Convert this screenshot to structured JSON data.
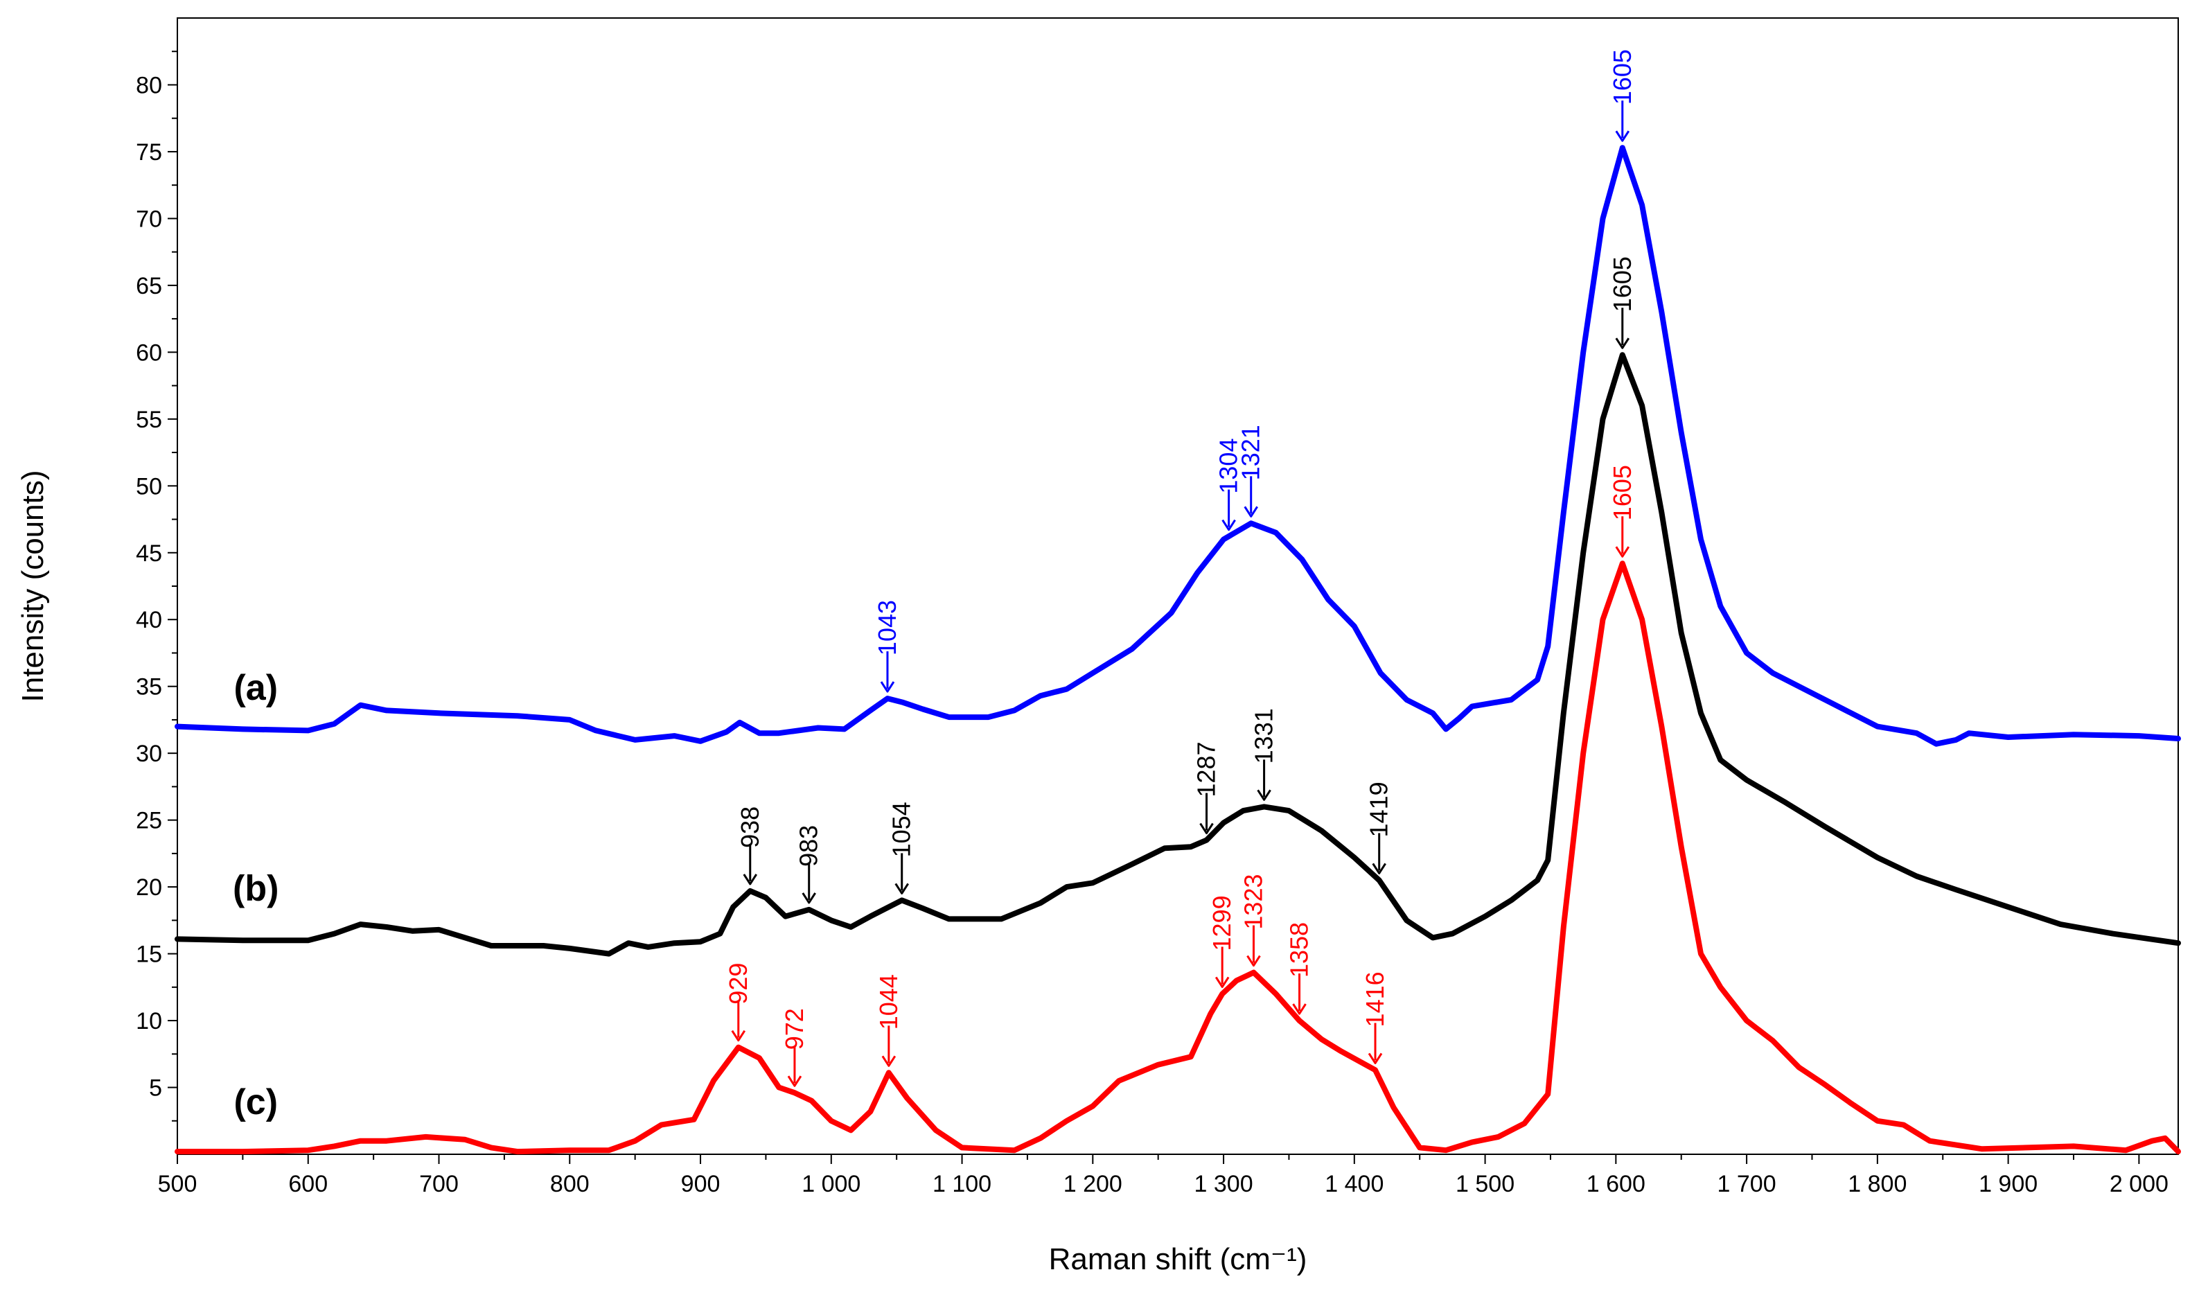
{
  "chart_data": {
    "type": "line",
    "title": "",
    "xlabel": "Raman shift (cm⁻¹)",
    "ylabel": "Intensity (counts)",
    "xlim": [
      500,
      2030
    ],
    "ylim": [
      0,
      85
    ],
    "grid": false,
    "x_ticks": [
      500,
      600,
      700,
      800,
      900,
      1000,
      1100,
      1200,
      1300,
      1400,
      1500,
      1600,
      1700,
      1800,
      1900,
      2000
    ],
    "x_tick_labels": [
      "500",
      "600",
      "700",
      "800",
      "900",
      "1 000",
      "1 100",
      "1 200",
      "1 300",
      "1 400",
      "1 500",
      "1 600",
      "1 700",
      "1 800",
      "1 900",
      "2 000"
    ],
    "y_ticks": [
      5,
      10,
      15,
      20,
      25,
      30,
      35,
      40,
      45,
      50,
      55,
      60,
      65,
      70,
      75,
      80
    ],
    "y_tick_labels": [
      "5",
      "10",
      "15",
      "20",
      "25",
      "30",
      "35",
      "40",
      "45",
      "50",
      "55",
      "60",
      "65",
      "70",
      "75",
      "80"
    ],
    "series": [
      {
        "name": "(a)",
        "color": "#0000ff",
        "points": [
          [
            500,
            32
          ],
          [
            550,
            31.8
          ],
          [
            600,
            31.7
          ],
          [
            620,
            32.2
          ],
          [
            640,
            33.6
          ],
          [
            660,
            33.2
          ],
          [
            700,
            33
          ],
          [
            760,
            32.8
          ],
          [
            800,
            32.5
          ],
          [
            820,
            31.7
          ],
          [
            850,
            31
          ],
          [
            880,
            31.3
          ],
          [
            900,
            30.9
          ],
          [
            920,
            31.6
          ],
          [
            930,
            32.3
          ],
          [
            945,
            31.5
          ],
          [
            960,
            31.5
          ],
          [
            990,
            31.9
          ],
          [
            1010,
            31.8
          ],
          [
            1030,
            33.2
          ],
          [
            1043,
            34.1
          ],
          [
            1055,
            33.8
          ],
          [
            1070,
            33.3
          ],
          [
            1090,
            32.7
          ],
          [
            1120,
            32.7
          ],
          [
            1140,
            33.2
          ],
          [
            1160,
            34.3
          ],
          [
            1180,
            34.8
          ],
          [
            1200,
            36
          ],
          [
            1230,
            37.8
          ],
          [
            1260,
            40.5
          ],
          [
            1280,
            43.5
          ],
          [
            1300,
            46
          ],
          [
            1321,
            47.2
          ],
          [
            1340,
            46.5
          ],
          [
            1360,
            44.5
          ],
          [
            1380,
            41.5
          ],
          [
            1400,
            39.5
          ],
          [
            1420,
            36
          ],
          [
            1440,
            34
          ],
          [
            1460,
            33
          ],
          [
            1470,
            31.8
          ],
          [
            1480,
            32.6
          ],
          [
            1490,
            33.5
          ],
          [
            1520,
            34
          ],
          [
            1540,
            35.5
          ],
          [
            1548,
            38
          ],
          [
            1560,
            48
          ],
          [
            1575,
            60
          ],
          [
            1590,
            70
          ],
          [
            1605,
            75.3
          ],
          [
            1620,
            71
          ],
          [
            1635,
            63
          ],
          [
            1650,
            54
          ],
          [
            1665,
            46
          ],
          [
            1680,
            41
          ],
          [
            1700,
            37.5
          ],
          [
            1720,
            36
          ],
          [
            1750,
            34.5
          ],
          [
            1780,
            33
          ],
          [
            1800,
            32
          ],
          [
            1830,
            31.5
          ],
          [
            1845,
            30.7
          ],
          [
            1860,
            31
          ],
          [
            1870,
            31.5
          ],
          [
            1900,
            31.2
          ],
          [
            1950,
            31.4
          ],
          [
            2000,
            31.3
          ],
          [
            2030,
            31.1
          ]
        ]
      },
      {
        "name": "(b)",
        "color": "#000000",
        "points": [
          [
            500,
            16.1
          ],
          [
            550,
            16
          ],
          [
            600,
            16
          ],
          [
            620,
            16.5
          ],
          [
            640,
            17.2
          ],
          [
            660,
            17
          ],
          [
            680,
            16.7
          ],
          [
            700,
            16.8
          ],
          [
            720,
            16.2
          ],
          [
            740,
            15.6
          ],
          [
            780,
            15.6
          ],
          [
            800,
            15.4
          ],
          [
            830,
            15
          ],
          [
            845,
            15.8
          ],
          [
            860,
            15.5
          ],
          [
            880,
            15.8
          ],
          [
            900,
            15.9
          ],
          [
            915,
            16.5
          ],
          [
            925,
            18.5
          ],
          [
            938,
            19.7
          ],
          [
            950,
            19.2
          ],
          [
            965,
            17.8
          ],
          [
            983,
            18.3
          ],
          [
            1000,
            17.5
          ],
          [
            1015,
            17
          ],
          [
            1030,
            17.8
          ],
          [
            1054,
            19
          ],
          [
            1070,
            18.4
          ],
          [
            1090,
            17.6
          ],
          [
            1130,
            17.6
          ],
          [
            1160,
            18.8
          ],
          [
            1180,
            20
          ],
          [
            1200,
            20.3
          ],
          [
            1230,
            21.7
          ],
          [
            1255,
            22.9
          ],
          [
            1275,
            23
          ],
          [
            1287,
            23.5
          ],
          [
            1300,
            24.8
          ],
          [
            1315,
            25.7
          ],
          [
            1331,
            26
          ],
          [
            1350,
            25.7
          ],
          [
            1375,
            24.2
          ],
          [
            1400,
            22.2
          ],
          [
            1419,
            20.5
          ],
          [
            1440,
            17.5
          ],
          [
            1460,
            16.2
          ],
          [
            1475,
            16.5
          ],
          [
            1500,
            17.8
          ],
          [
            1520,
            19
          ],
          [
            1540,
            20.5
          ],
          [
            1548,
            22
          ],
          [
            1560,
            33
          ],
          [
            1575,
            45
          ],
          [
            1590,
            55
          ],
          [
            1605,
            59.8
          ],
          [
            1620,
            56
          ],
          [
            1635,
            48
          ],
          [
            1650,
            39
          ],
          [
            1665,
            33
          ],
          [
            1680,
            29.5
          ],
          [
            1700,
            28
          ],
          [
            1730,
            26.3
          ],
          [
            1760,
            24.5
          ],
          [
            1800,
            22.2
          ],
          [
            1830,
            20.8
          ],
          [
            1860,
            19.8
          ],
          [
            1900,
            18.5
          ],
          [
            1940,
            17.2
          ],
          [
            1980,
            16.5
          ],
          [
            2030,
            15.8
          ]
        ]
      },
      {
        "name": "(c)",
        "color": "#ff0000",
        "points": [
          [
            500,
            0.2
          ],
          [
            550,
            0.2
          ],
          [
            600,
            0.3
          ],
          [
            620,
            0.6
          ],
          [
            640,
            1
          ],
          [
            660,
            1
          ],
          [
            690,
            1.3
          ],
          [
            720,
            1.1
          ],
          [
            740,
            0.5
          ],
          [
            760,
            0.2
          ],
          [
            800,
            0.3
          ],
          [
            830,
            0.3
          ],
          [
            850,
            1
          ],
          [
            870,
            2.2
          ],
          [
            895,
            2.6
          ],
          [
            910,
            5.5
          ],
          [
            929,
            8
          ],
          [
            945,
            7.2
          ],
          [
            960,
            5
          ],
          [
            972,
            4.6
          ],
          [
            985,
            4
          ],
          [
            1000,
            2.5
          ],
          [
            1015,
            1.8
          ],
          [
            1030,
            3.2
          ],
          [
            1044,
            6.1
          ],
          [
            1058,
            4.2
          ],
          [
            1080,
            1.8
          ],
          [
            1100,
            0.5
          ],
          [
            1140,
            0.3
          ],
          [
            1160,
            1.2
          ],
          [
            1180,
            2.5
          ],
          [
            1200,
            3.6
          ],
          [
            1220,
            5.5
          ],
          [
            1250,
            6.7
          ],
          [
            1275,
            7.3
          ],
          [
            1290,
            10.5
          ],
          [
            1299,
            12
          ],
          [
            1310,
            13
          ],
          [
            1323,
            13.6
          ],
          [
            1340,
            12
          ],
          [
            1358,
            10
          ],
          [
            1375,
            8.6
          ],
          [
            1390,
            7.7
          ],
          [
            1416,
            6.3
          ],
          [
            1430,
            3.5
          ],
          [
            1450,
            0.5
          ],
          [
            1470,
            0.3
          ],
          [
            1490,
            0.9
          ],
          [
            1510,
            1.3
          ],
          [
            1530,
            2.3
          ],
          [
            1548,
            4.5
          ],
          [
            1560,
            17
          ],
          [
            1575,
            30
          ],
          [
            1590,
            40
          ],
          [
            1605,
            44.2
          ],
          [
            1620,
            40
          ],
          [
            1635,
            32
          ],
          [
            1650,
            23
          ],
          [
            1665,
            15
          ],
          [
            1680,
            12.5
          ],
          [
            1700,
            10
          ],
          [
            1720,
            8.5
          ],
          [
            1740,
            6.5
          ],
          [
            1760,
            5.2
          ],
          [
            1780,
            3.8
          ],
          [
            1800,
            2.5
          ],
          [
            1820,
            2.2
          ],
          [
            1840,
            1
          ],
          [
            1880,
            0.4
          ],
          [
            1950,
            0.6
          ],
          [
            1990,
            0.3
          ],
          [
            2010,
            1
          ],
          [
            2020,
            1.2
          ],
          [
            2030,
            0.2
          ]
        ]
      }
    ],
    "series_labels": [
      {
        "text": "(a)",
        "x": 560,
        "y": 34
      },
      {
        "text": "(b)",
        "x": 560,
        "y": 19
      },
      {
        "text": "(c)",
        "x": 560,
        "y": 3
      }
    ],
    "annotations": [
      {
        "series": "(a)",
        "label": "1043",
        "x": 1043,
        "y": 34.1,
        "color": "#0000ff"
      },
      {
        "series": "(a)",
        "label": "1304",
        "x": 1304,
        "y": 46.2,
        "color": "#0000ff"
      },
      {
        "series": "(a)",
        "label": "1321",
        "x": 1321,
        "y": 47.2,
        "color": "#0000ff"
      },
      {
        "series": "(a)",
        "label": "1605",
        "x": 1605,
        "y": 75.3,
        "color": "#0000ff"
      },
      {
        "series": "(b)",
        "label": "938",
        "x": 938,
        "y": 19.7,
        "color": "#000000"
      },
      {
        "series": "(b)",
        "label": "983",
        "x": 983,
        "y": 18.3,
        "color": "#000000"
      },
      {
        "series": "(b)",
        "label": "1054",
        "x": 1054,
        "y": 19,
        "color": "#000000"
      },
      {
        "series": "(b)",
        "label": "1287",
        "x": 1287,
        "y": 23.5,
        "color": "#000000"
      },
      {
        "series": "(b)",
        "label": "1331",
        "x": 1331,
        "y": 26,
        "color": "#000000"
      },
      {
        "series": "(b)",
        "label": "1419",
        "x": 1419,
        "y": 20.5,
        "color": "#000000"
      },
      {
        "series": "(b)",
        "label": "1605",
        "x": 1605,
        "y": 59.8,
        "color": "#000000"
      },
      {
        "series": "(c)",
        "label": "929",
        "x": 929,
        "y": 8,
        "color": "#ff0000"
      },
      {
        "series": "(c)",
        "label": "972",
        "x": 972,
        "y": 4.6,
        "color": "#ff0000"
      },
      {
        "series": "(c)",
        "label": "1044",
        "x": 1044,
        "y": 6.1,
        "color": "#ff0000"
      },
      {
        "series": "(c)",
        "label": "1299",
        "x": 1299,
        "y": 12,
        "color": "#ff0000"
      },
      {
        "series": "(c)",
        "label": "1323",
        "x": 1323,
        "y": 13.6,
        "color": "#ff0000"
      },
      {
        "series": "(c)",
        "label": "1358",
        "x": 1358,
        "y": 10,
        "color": "#ff0000"
      },
      {
        "series": "(c)",
        "label": "1416",
        "x": 1416,
        "y": 6.3,
        "color": "#ff0000"
      },
      {
        "series": "(c)",
        "label": "1605",
        "x": 1605,
        "y": 44.2,
        "color": "#ff0000"
      }
    ]
  }
}
